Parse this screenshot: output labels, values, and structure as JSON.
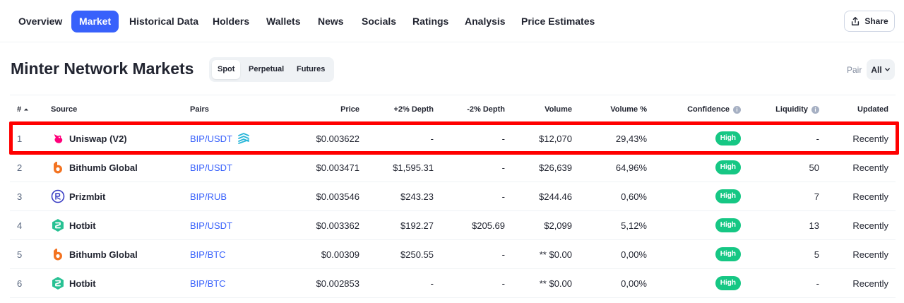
{
  "nav": {
    "tabs": [
      "Overview",
      "Market",
      "Historical Data",
      "Holders",
      "Wallets",
      "News",
      "Socials",
      "Ratings",
      "Analysis",
      "Price Estimates"
    ],
    "active_tab": "Market",
    "share_label": "Share"
  },
  "heading": {
    "title": "Minter Network Markets",
    "segments": [
      "Spot",
      "Perpetual",
      "Futures"
    ],
    "active_segment": "Spot",
    "pair_label": "Pair",
    "pair_value": "All"
  },
  "table": {
    "columns": {
      "rank": "#",
      "source": "Source",
      "pairs": "Pairs",
      "price": "Price",
      "plus_depth": "+2% Depth",
      "minus_depth": "-2% Depth",
      "volume": "Volume",
      "volume_pct": "Volume %",
      "confidence": "Confidence",
      "liquidity": "Liquidity",
      "updated": "Updated"
    },
    "rows": [
      {
        "rank": "1",
        "source": "Uniswap (V2)",
        "logo": "uniswap-icon",
        "pair": "BIP/USDT",
        "price": "$0.003622",
        "plus_depth": "-",
        "minus_depth": "-",
        "volume": "$12,070",
        "volume_pct": "29,43%",
        "confidence": "High",
        "liquidity": "-",
        "updated": "Recently"
      },
      {
        "rank": "2",
        "source": "Bithumb Global",
        "logo": "bithumb-icon",
        "pair": "BIP/USDT",
        "price": "$0.003471",
        "plus_depth": "$1,595.31",
        "minus_depth": "-",
        "volume": "$26,639",
        "volume_pct": "64,96%",
        "confidence": "High",
        "liquidity": "50",
        "updated": "Recently"
      },
      {
        "rank": "3",
        "source": "Prizmbit",
        "logo": "prizmbit-icon",
        "pair": "BIP/RUB",
        "price": "$0.003546",
        "plus_depth": "$243.23",
        "minus_depth": "-",
        "volume": "$244.46",
        "volume_pct": "0,60%",
        "confidence": "High",
        "liquidity": "7",
        "updated": "Recently"
      },
      {
        "rank": "4",
        "source": "Hotbit",
        "logo": "hotbit-icon",
        "pair": "BIP/USDT",
        "price": "$0.003362",
        "plus_depth": "$192.27",
        "minus_depth": "$205.69",
        "volume": "$2,099",
        "volume_pct": "5,12%",
        "confidence": "High",
        "liquidity": "13",
        "updated": "Recently"
      },
      {
        "rank": "5",
        "source": "Bithumb Global",
        "logo": "bithumb-icon",
        "pair": "BIP/BTC",
        "price": "$0.00309",
        "plus_depth": "$250.55",
        "minus_depth": "-",
        "volume": "** $0.00",
        "volume_pct": "0,00%",
        "confidence": "High",
        "liquidity": "5",
        "updated": "Recently"
      },
      {
        "rank": "6",
        "source": "Hotbit",
        "logo": "hotbit-icon",
        "pair": "BIP/BTC",
        "price": "$0.002853",
        "plus_depth": "-",
        "minus_depth": "-",
        "volume": "** $0.00",
        "volume_pct": "0,00%",
        "confidence": "High",
        "liquidity": "-",
        "updated": "Recently"
      }
    ]
  },
  "colors": {
    "accent": "#3861fb",
    "confidence_high": "#16c784",
    "highlight_box": "#ff0000"
  }
}
